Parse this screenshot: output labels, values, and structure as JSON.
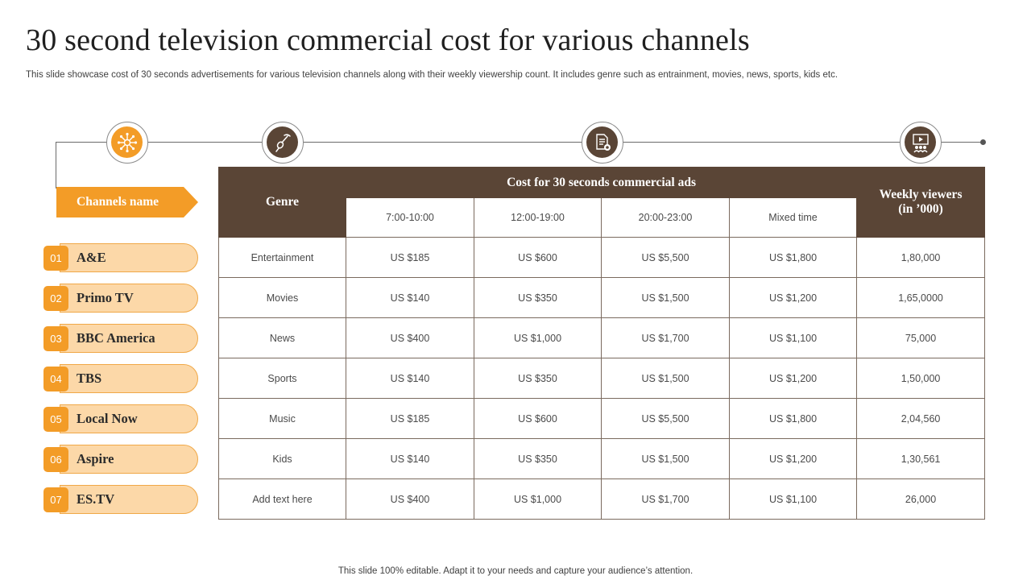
{
  "title": "30 second television commercial cost for various channels",
  "subtitle": "This slide showcase cost of 30 seconds advertisements for various television channels along with their weekly viewership count. It includes genre such as entrainment, movies, news, sports, kids etc.",
  "footer": "This slide 100% editable. Adapt it to your needs and capture your audience’s attention.",
  "icons": [
    "network-icon",
    "microphone-icon",
    "document-icon",
    "presentation-icon"
  ],
  "colors": {
    "accent": "#f39c27",
    "brown": "#5a4536",
    "pill": "#fcd8a8"
  },
  "channels_header": "Channels name",
  "channels": [
    {
      "num": "01",
      "name": "A&E"
    },
    {
      "num": "02",
      "name": "Primo TV"
    },
    {
      "num": "03",
      "name": "BBC America"
    },
    {
      "num": "04",
      "name": "TBS"
    },
    {
      "num": "05",
      "name": "Local Now"
    },
    {
      "num": "06",
      "name": "Aspire"
    },
    {
      "num": "07",
      "name": "ES.TV"
    }
  ],
  "table": {
    "genre_header": "Genre",
    "cost_header": "Cost for 30 seconds commercial ads",
    "viewers_header_line1": "Weekly viewers",
    "viewers_header_line2": "(in ’000)",
    "time_slots": [
      "7:00-10:00",
      "12:00-19:00",
      "20:00-23:00",
      "Mixed time"
    ],
    "rows": [
      [
        "Entertainment",
        "US $185",
        "US $600",
        "US $5,500",
        "US $1,800",
        "1,80,000"
      ],
      [
        "Movies",
        "US $140",
        "US $350",
        "US $1,500",
        "US $1,200",
        "1,65,0000"
      ],
      [
        "News",
        "US $400",
        "US $1,000",
        "US $1,700",
        "US $1,100",
        "75,000"
      ],
      [
        "Sports",
        "US $140",
        "US $350",
        "US $1,500",
        "US $1,200",
        "1,50,000"
      ],
      [
        "Music",
        "US $185",
        "US $600",
        "US $5,500",
        "US $1,800",
        "2,04,560"
      ],
      [
        "Kids",
        "US $140",
        "US $350",
        "US $1,500",
        "US $1,200",
        "1,30,561"
      ],
      [
        "Add text here",
        "US $400",
        "US $1,000",
        "US $1,700",
        "US $1,100",
        "26,000"
      ]
    ]
  }
}
